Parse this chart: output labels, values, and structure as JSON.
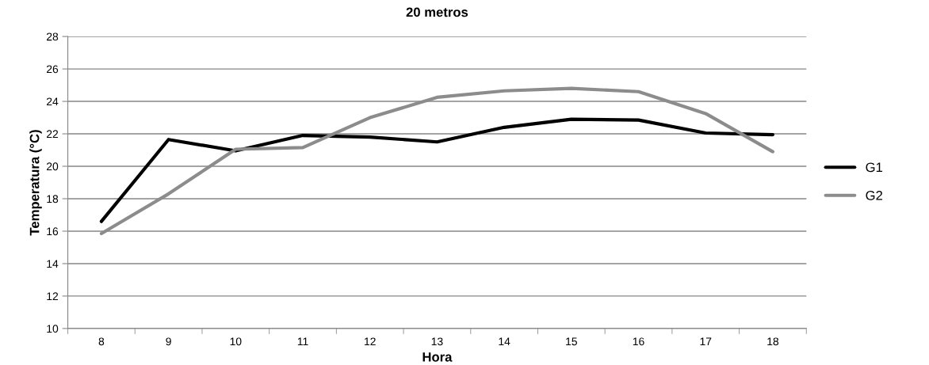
{
  "chart_data": {
    "type": "line",
    "title": "20 metros",
    "xlabel": "Hora",
    "ylabel": "Temperatura (°C)",
    "categories": [
      "8",
      "9",
      "10",
      "11",
      "12",
      "13",
      "14",
      "15",
      "16",
      "17",
      "18"
    ],
    "series": [
      {
        "name": "G1",
        "color": "#000000",
        "values": [
          16.6,
          21.65,
          20.95,
          21.9,
          21.8,
          21.5,
          22.4,
          22.9,
          22.85,
          22.05,
          21.95
        ]
      },
      {
        "name": "G2",
        "color": "#8c8c8c",
        "values": [
          15.85,
          18.3,
          21.05,
          21.15,
          23.0,
          24.25,
          24.65,
          24.8,
          24.6,
          23.25,
          20.9
        ]
      }
    ],
    "ylim": [
      10,
      28
    ],
    "yticks": [
      10,
      12,
      14,
      16,
      18,
      20,
      22,
      24,
      26,
      28
    ],
    "grid": "y",
    "legend": "right",
    "marker": "none",
    "line_style": "solid"
  }
}
